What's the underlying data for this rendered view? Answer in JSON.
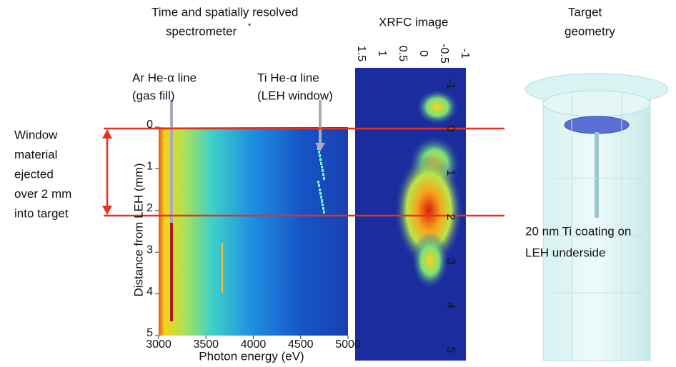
{
  "spectrometer": {
    "title": "Time and spatially resolved",
    "title2": "spectrometer",
    "footnote": "*",
    "annotations": [
      {
        "line1": "Ar He-α line",
        "line2": "(gas fill)"
      },
      {
        "line1": "Ti He-α line",
        "line2": "(LEH window)"
      }
    ],
    "x_label": "Photon energy (eV)",
    "y_label": "Distance from LEH (mm)",
    "xticks": [
      3000,
      3500,
      4000,
      4500,
      5000
    ],
    "yticks": [
      0,
      1,
      2,
      3,
      4,
      5
    ]
  },
  "xrfc": {
    "title": "XRFC image",
    "top_ticks": [
      1.5,
      1,
      0.5,
      0,
      -0.5,
      -1
    ],
    "side_ticks": [
      -1,
      0,
      1,
      2,
      3,
      4,
      5
    ]
  },
  "target": {
    "title": "Target",
    "title2": "geometry",
    "caption1": "20 nm Ti coating on",
    "caption2": "LEH underside"
  },
  "window_note": [
    "Window",
    "material",
    "ejected",
    "over 2 mm",
    "into target"
  ]
}
